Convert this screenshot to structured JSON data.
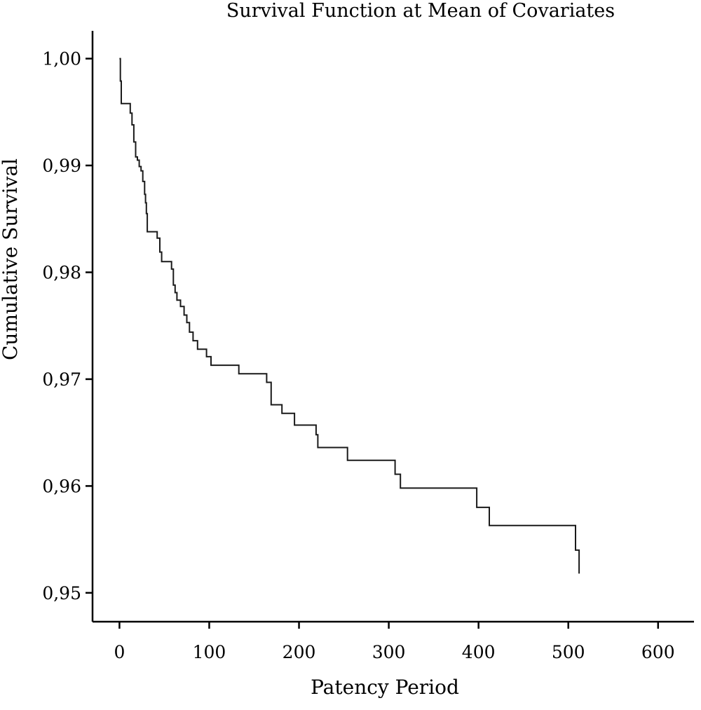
{
  "chart_data": {
    "type": "line",
    "title": "Survival Function at Mean of Covariates",
    "xlabel": "Patency Period",
    "ylabel": "Cumulative Survival",
    "xlim": [
      -30,
      640
    ],
    "ylim": [
      0.9473,
      1.0026
    ],
    "x_ticks": [
      0,
      100,
      200,
      300,
      400,
      500,
      600
    ],
    "x_tick_labels": [
      "0",
      "100",
      "200",
      "300",
      "400",
      "500",
      "600"
    ],
    "y_ticks": [
      0.95,
      0.96,
      0.97,
      0.98,
      0.99,
      1.0
    ],
    "y_tick_labels": [
      "0,95",
      "0,96",
      "0,97",
      "0,98",
      "0,99",
      "1,00"
    ],
    "grid": false,
    "legend": "none",
    "series": [
      {
        "color": "#1a1a1a",
        "step": true,
        "x": [
          0,
          1,
          2,
          12,
          14,
          16,
          18,
          20,
          22,
          24,
          26,
          28,
          29,
          30,
          31,
          42,
          45,
          47,
          58,
          60,
          62,
          64,
          68,
          72,
          75,
          78,
          82,
          87,
          97,
          102,
          106,
          133,
          159,
          164,
          169,
          181,
          195,
          217,
          219,
          221,
          254,
          302,
          307,
          313,
          398,
          412,
          508,
          512
        ],
        "y": [
          1.0,
          0.9979,
          0.9958,
          0.9949,
          0.9938,
          0.9922,
          0.9908,
          0.9905,
          0.9899,
          0.9895,
          0.9885,
          0.9873,
          0.9865,
          0.9855,
          0.9838,
          0.9832,
          0.9819,
          0.981,
          0.9803,
          0.9788,
          0.9781,
          0.9774,
          0.9768,
          0.976,
          0.9753,
          0.9744,
          0.9736,
          0.9728,
          0.9721,
          0.9713,
          0.9713,
          0.9705,
          0.9705,
          0.9697,
          0.9676,
          0.9668,
          0.9657,
          0.9657,
          0.9648,
          0.9636,
          0.9624,
          0.9624,
          0.9611,
          0.9598,
          0.958,
          0.9563,
          0.954,
          0.9518
        ]
      }
    ]
  }
}
